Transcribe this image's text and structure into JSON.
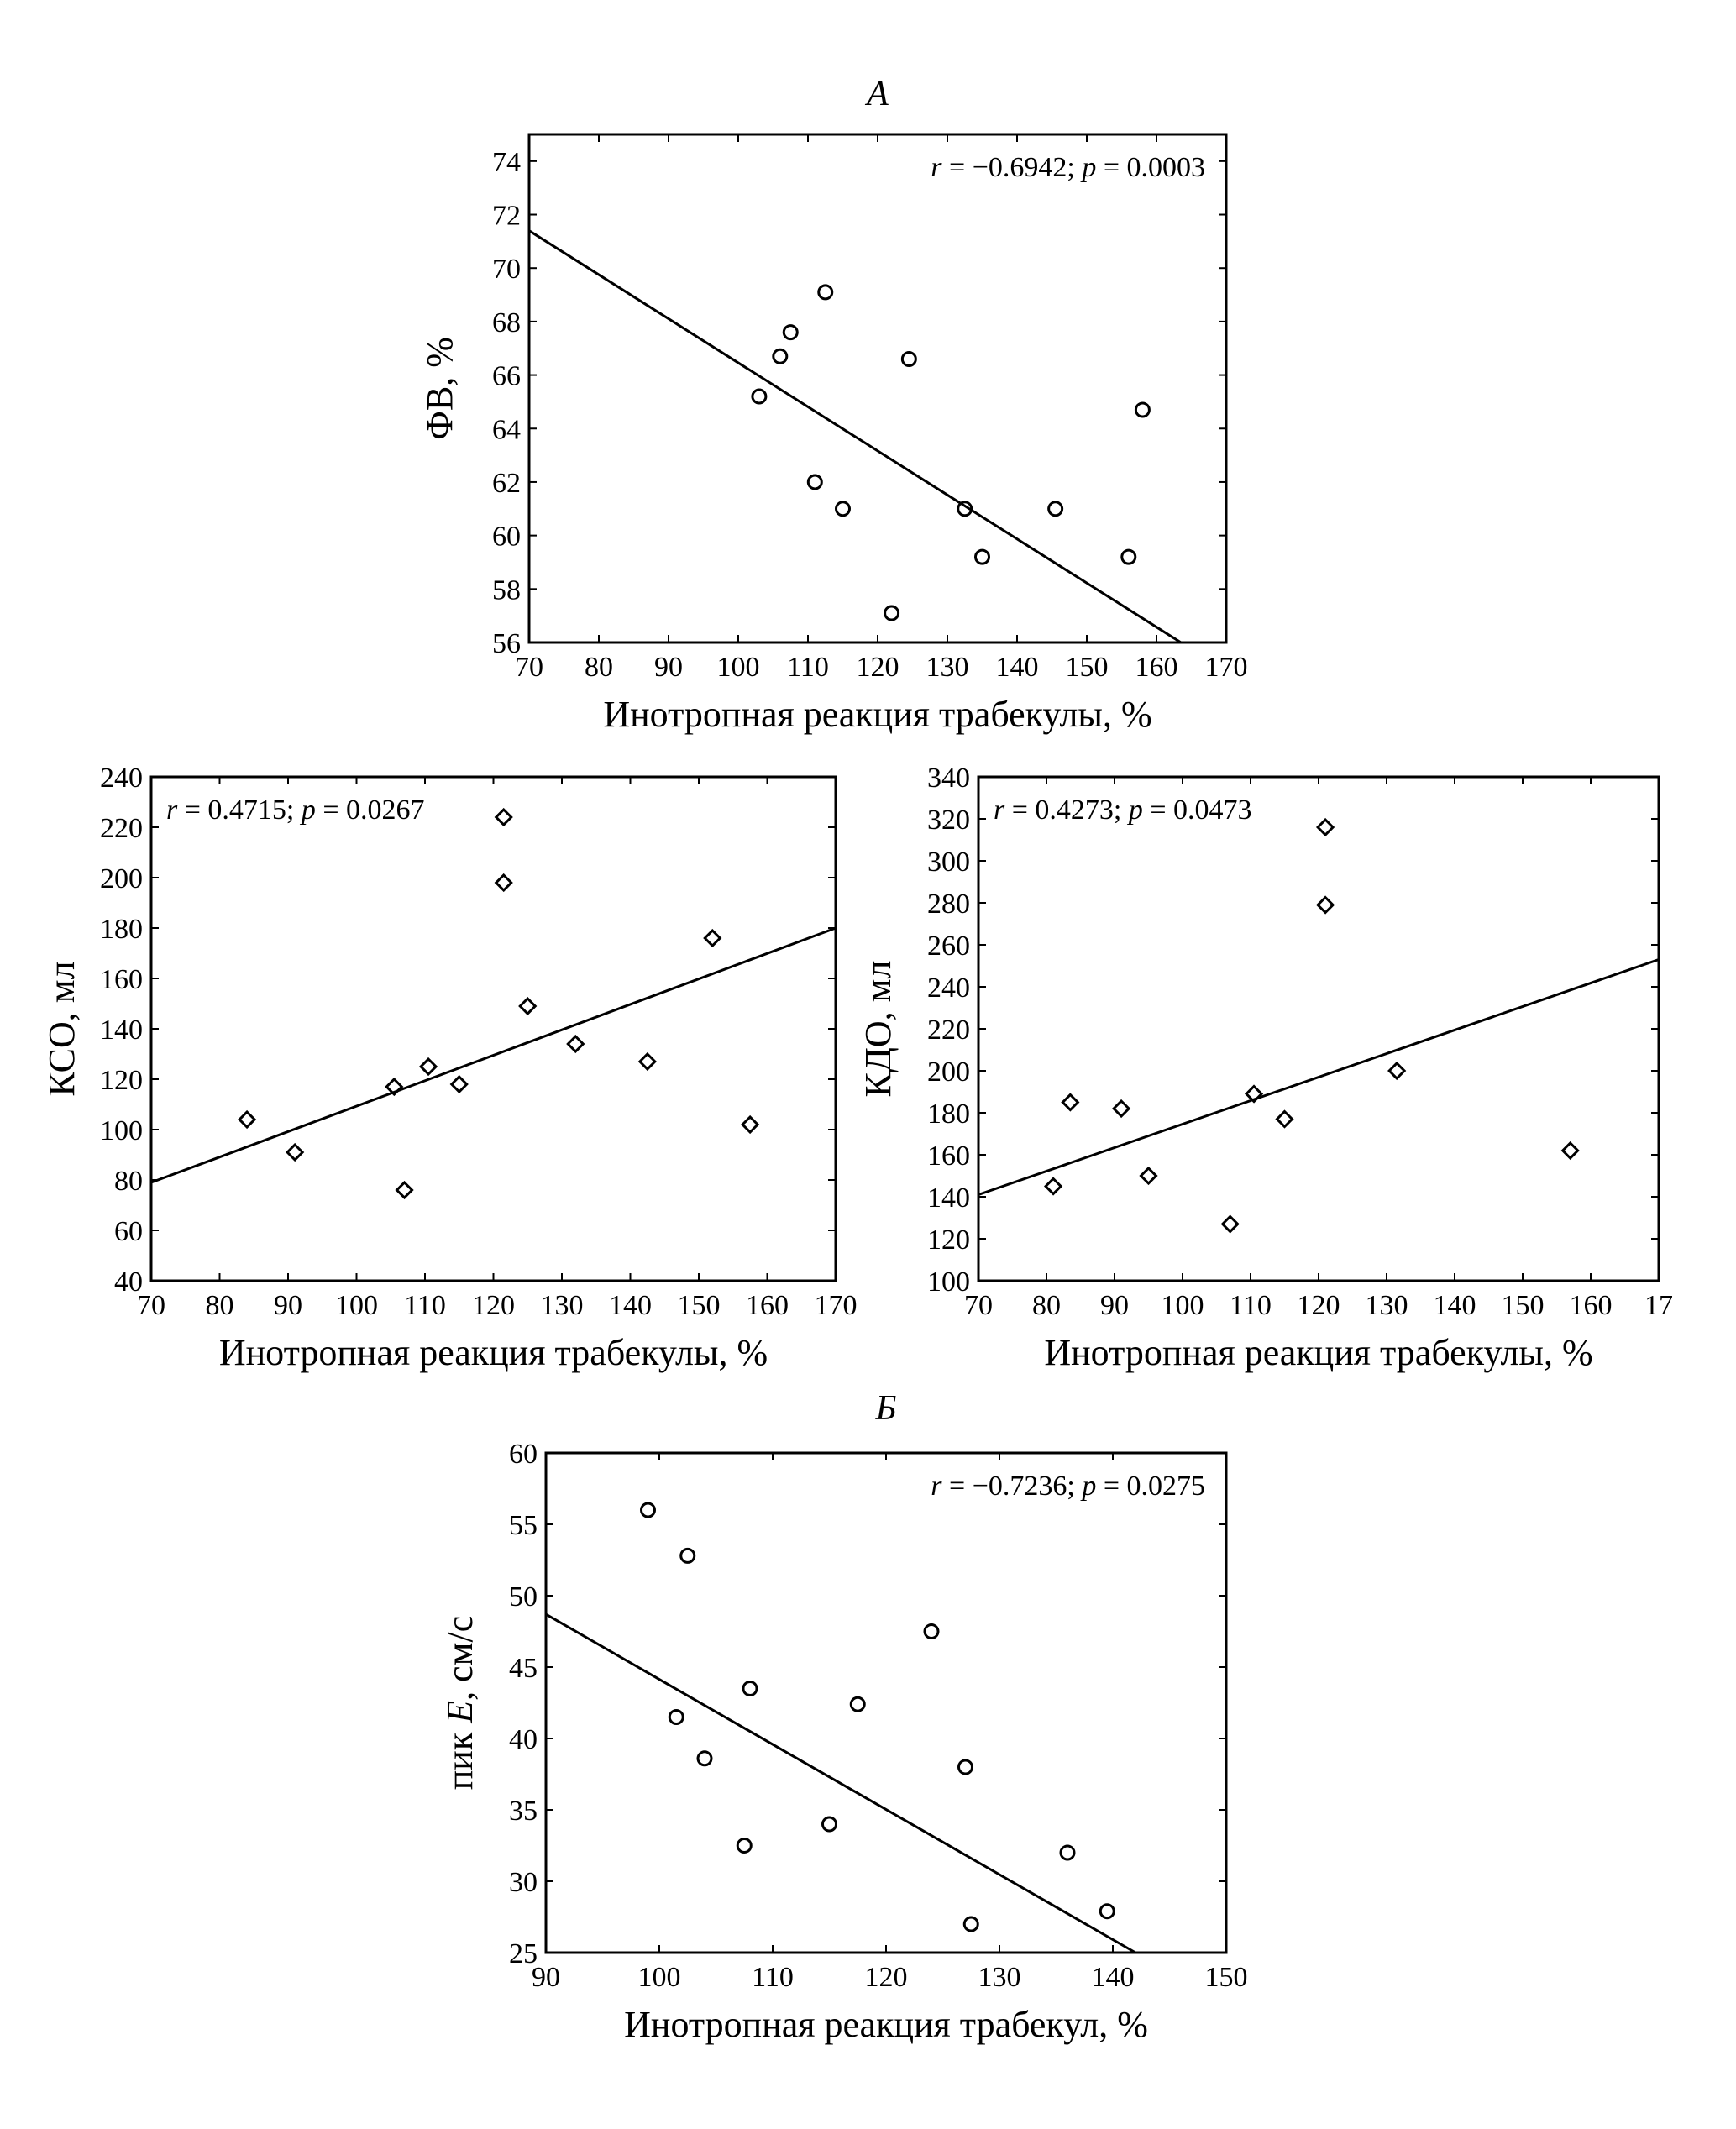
{
  "chart_data": [
    {
      "id": "A",
      "type": "scatter",
      "panel_label": "A",
      "xlabel": "Инотропная реакция трабекулы, %",
      "ylabel": "ФВ, %",
      "xlim": [
        70,
        170
      ],
      "ylim": [
        56,
        75
      ],
      "xticks": [
        "70",
        "80",
        "90",
        "100",
        "110",
        "120",
        "130",
        "140",
        "150",
        "160",
        "170"
      ],
      "yticks": [
        "56",
        "58",
        "60",
        "62",
        "64",
        "66",
        "68",
        "70",
        "72",
        "74"
      ],
      "annotation": {
        "r_sym": "r",
        "r_text": " = −0.6942; ",
        "p_sym": "p",
        "p_text": " = 0.0003",
        "position": "top-right"
      },
      "marker": "circle",
      "points": [
        [
          103,
          65.2
        ],
        [
          106,
          66.7
        ],
        [
          107.5,
          67.6
        ],
        [
          111,
          62
        ],
        [
          112.5,
          69.1
        ],
        [
          115,
          61
        ],
        [
          122,
          57.1
        ],
        [
          124.5,
          66.6
        ],
        [
          132.5,
          61
        ],
        [
          135,
          59.2
        ],
        [
          145.5,
          61
        ],
        [
          156,
          59.2
        ],
        [
          158,
          64.7
        ]
      ],
      "fit_line": [
        [
          70,
          71.4
        ],
        [
          163.5,
          56
        ]
      ]
    },
    {
      "id": "KSO",
      "type": "scatter",
      "panel_label": "",
      "xlabel": "Инотропная реакция трабекулы, %",
      "ylabel": "КСО, мл",
      "xlim": [
        70,
        170
      ],
      "ylim": [
        40,
        240
      ],
      "xticks": [
        "70",
        "80",
        "90",
        "100",
        "110",
        "120",
        "130",
        "140",
        "150",
        "160",
        "170"
      ],
      "yticks": [
        "40",
        "60",
        "80",
        "100",
        "120",
        "140",
        "160",
        "180",
        "200",
        "220",
        "240"
      ],
      "annotation": {
        "r_sym": "r",
        "r_text": " = 0.4715; ",
        "p_sym": "p",
        "p_text": " = 0.0267",
        "position": "top-left"
      },
      "marker": "diamond",
      "points": [
        [
          84,
          104
        ],
        [
          91,
          91
        ],
        [
          105.5,
          117
        ],
        [
          107,
          76
        ],
        [
          110.5,
          125
        ],
        [
          115,
          118
        ],
        [
          121.5,
          224
        ],
        [
          121.5,
          198
        ],
        [
          125,
          149
        ],
        [
          132,
          134
        ],
        [
          142.5,
          127
        ],
        [
          152,
          176
        ],
        [
          157.5,
          102
        ]
      ],
      "fit_line": [
        [
          70,
          79
        ],
        [
          170,
          180
        ]
      ]
    },
    {
      "id": "KDO",
      "type": "scatter",
      "panel_label": "",
      "xlabel": "Инотропная реакция трабекулы, %",
      "ylabel": "КДО, мл",
      "xlim": [
        70,
        170
      ],
      "ylim": [
        100,
        340
      ],
      "xticks": [
        "70",
        "80",
        "90",
        "100",
        "110",
        "120",
        "130",
        "140",
        "150",
        "160",
        "17"
      ],
      "yticks": [
        "100",
        "120",
        "140",
        "160",
        "180",
        "200",
        "220",
        "240",
        "260",
        "280",
        "300",
        "320",
        "340"
      ],
      "annotation": {
        "r_sym": "r",
        "r_text": " = 0.4273; ",
        "p_sym": "p",
        "p_text": " = 0.0473",
        "position": "top-left"
      },
      "marker": "diamond",
      "points": [
        [
          81,
          145
        ],
        [
          83.5,
          185
        ],
        [
          91,
          182
        ],
        [
          95,
          150
        ],
        [
          107,
          127
        ],
        [
          110.5,
          189
        ],
        [
          115,
          177
        ],
        [
          121,
          316
        ],
        [
          121,
          279
        ],
        [
          131.5,
          200
        ],
        [
          157,
          162
        ]
      ],
      "fit_line": [
        [
          70,
          141
        ],
        [
          170,
          253
        ]
      ]
    },
    {
      "id": "B",
      "type": "scatter",
      "panel_label": "Б",
      "xlabel": "Инотропная реакция трабекул, %",
      "ylabel_pre": "пик ",
      "ylabel_it": "E",
      "ylabel_post": ", см/с",
      "xlim": [
        90,
        150
      ],
      "ylim": [
        25,
        60
      ],
      "xticks": [
        "90",
        "100",
        "110",
        "120",
        "130",
        "140",
        "150"
      ],
      "yticks": [
        "25",
        "30",
        "35",
        "40",
        "45",
        "50",
        "55",
        "60"
      ],
      "annotation": {
        "r_sym": "r",
        "r_text": " = −0.7236; ",
        "p_sym": "p",
        "p_text": " = 0.0275",
        "position": "top-right"
      },
      "marker": "circle",
      "points": [
        [
          99,
          56
        ],
        [
          101.5,
          41.5
        ],
        [
          102.5,
          52.8
        ],
        [
          104,
          38.6
        ],
        [
          107.5,
          32.5
        ],
        [
          108,
          43.5
        ],
        [
          115,
          34
        ],
        [
          117.5,
          42.4
        ],
        [
          124,
          47.5
        ],
        [
          127,
          38
        ],
        [
          127.5,
          27
        ],
        [
          136,
          32
        ],
        [
          139.5,
          27.9
        ]
      ],
      "fit_line": [
        [
          90,
          48.7
        ],
        [
          142,
          25
        ]
      ]
    }
  ]
}
